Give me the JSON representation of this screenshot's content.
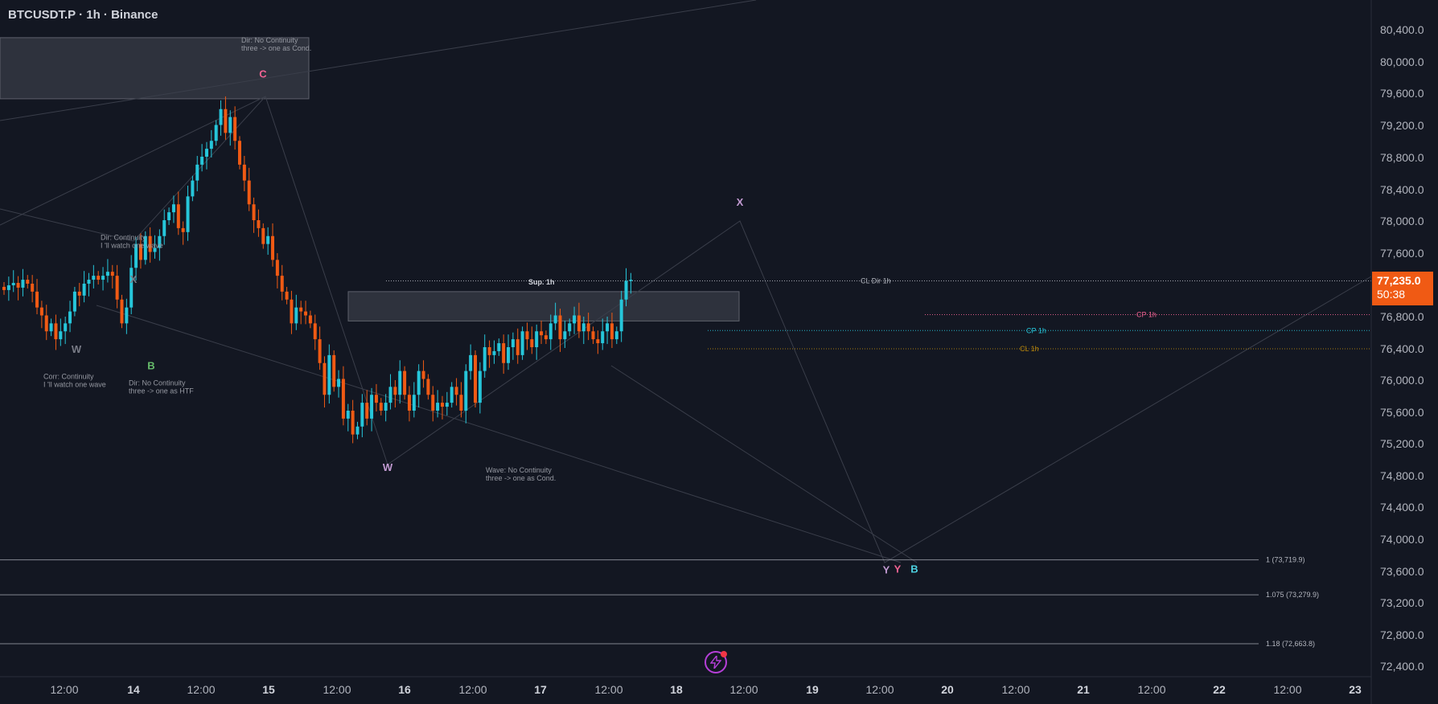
{
  "header": {
    "title": "BTCUSDT.P · 1h · Binance"
  },
  "price_tag": {
    "price": "77,235.0",
    "countdown": "50:38"
  },
  "colors": {
    "bg": "#131722",
    "bull": "#26c6da",
    "bear": "#f05a14",
    "grid": "#2a2e39",
    "text": "#b2b5be",
    "pink": "#f06292",
    "gold": "#b8860b",
    "purple": "#c39bd3",
    "green": "#66bb6a"
  },
  "chart_data": {
    "type": "candlestick",
    "ylim": [
      72200,
      80800
    ],
    "y_ticks": [
      "80,400.0",
      "80,000.0",
      "79,600.0",
      "79,200.0",
      "78,800.0",
      "78,400.0",
      "78,000.0",
      "77,600.0",
      "76,800.0",
      "76,400.0",
      "76,000.0",
      "75,600.0",
      "75,200.0",
      "74,800.0",
      "74,400.0",
      "74,000.0",
      "73,600.0",
      "73,200.0",
      "72,800.0",
      "72,400.0"
    ],
    "x_ticks": [
      {
        "label": "12:00",
        "x": 80,
        "bold": false
      },
      {
        "label": "14",
        "x": 166,
        "bold": true
      },
      {
        "label": "12:00",
        "x": 250,
        "bold": false
      },
      {
        "label": "15",
        "x": 334,
        "bold": true
      },
      {
        "label": "12:00",
        "x": 419,
        "bold": false
      },
      {
        "label": "16",
        "x": 503,
        "bold": true
      },
      {
        "label": "12:00",
        "x": 588,
        "bold": false
      },
      {
        "label": "17",
        "x": 672,
        "bold": true
      },
      {
        "label": "12:00",
        "x": 757,
        "bold": false
      },
      {
        "label": "18",
        "x": 841,
        "bold": true
      },
      {
        "label": "12:00",
        "x": 925,
        "bold": false
      },
      {
        "label": "19",
        "x": 1010,
        "bold": true
      },
      {
        "label": "12:00",
        "x": 1094,
        "bold": false
      },
      {
        "label": "20",
        "x": 1178,
        "bold": true
      },
      {
        "label": "12:00",
        "x": 1263,
        "bold": false
      },
      {
        "label": "21",
        "x": 1347,
        "bold": true
      },
      {
        "label": "12:00",
        "x": 1432,
        "bold": false
      },
      {
        "label": "22",
        "x": 1516,
        "bold": true
      },
      {
        "label": "12:00",
        "x": 1601,
        "bold": false
      },
      {
        "label": "23",
        "x": 1685,
        "bold": true
      }
    ],
    "closes": [
      77120,
      77180,
      77210,
      77150,
      77250,
      77200,
      77100,
      76900,
      76800,
      76600,
      76700,
      76500,
      76600,
      76700,
      76850,
      77100,
      77050,
      77200,
      77250,
      77300,
      77250,
      77300,
      77350,
      77300,
      77000,
      76700,
      76900,
      77400,
      77700,
      77500,
      77800,
      77600,
      77650,
      77800,
      78000,
      78100,
      78200,
      77900,
      77850,
      78300,
      78500,
      78700,
      78800,
      78900,
      79000,
      79200,
      79400,
      79100,
      79300,
      79000,
      78700,
      78500,
      78200,
      78000,
      77900,
      77700,
      77800,
      77500,
      77300,
      77100,
      77000,
      76700,
      76900,
      76850,
      76800,
      76700,
      76500,
      76200,
      75800,
      76300,
      75900,
      76000,
      75500,
      75600,
      75300,
      75400,
      75700,
      75500,
      75800,
      75700,
      75600,
      75700,
      75900,
      75800,
      76100,
      75800,
      75600,
      75800,
      76100,
      76000,
      75800,
      75600,
      75700,
      75650,
      75700,
      75900,
      75800,
      75600,
      76100,
      76300,
      75700,
      76100,
      76400,
      76300,
      76350,
      76450,
      76200,
      76400,
      76500,
      76300,
      76600,
      76500,
      76400,
      76600,
      76550,
      76500,
      76700,
      76800,
      76500,
      76600,
      76700,
      76800,
      76600,
      76700,
      76600,
      76500,
      76450,
      76600,
      76700,
      76500,
      76600,
      77000,
      77235,
      77250
    ],
    "levels": [
      {
        "price": 77235,
        "label": "CL Dir 1h",
        "style": "dotted",
        "color": "#b2b5be",
        "x0": 480
      },
      {
        "price": 76810,
        "label": "CP 1h",
        "style": "dotted",
        "color": "#f06292",
        "x0": 1150
      },
      {
        "price": 76610,
        "label": "CP 1h",
        "style": "dotted",
        "color": "#26c6da",
        "x0": 880
      },
      {
        "price": 76380,
        "label": "CL 1h",
        "style": "dotted",
        "color": "#b8860b",
        "x0": 880
      },
      {
        "price": 73719.9,
        "label": "1 (73,719.9)",
        "style": "solid",
        "color": "#b2b5be",
        "x0": 0
      },
      {
        "price": 73279.9,
        "label": "1.075 (73,279.9)",
        "style": "solid",
        "color": "#b2b5be",
        "x0": 0
      },
      {
        "price": 72663.8,
        "label": "1.18 (72,663.8)",
        "style": "solid",
        "color": "#b2b5be",
        "x0": 0
      }
    ],
    "markers": [
      {
        "text": "C",
        "price": 79800,
        "x": 327,
        "color": "#f06292"
      },
      {
        "text": "X",
        "price": 78180,
        "x": 920,
        "color": "#c39bd3"
      },
      {
        "text": "X",
        "price": 77210,
        "x": 166,
        "color": "#787b86"
      },
      {
        "text": "W",
        "price": 76330,
        "x": 95,
        "color": "#787b86"
      },
      {
        "text": "B",
        "price": 76120,
        "x": 188,
        "color": "#66bb6a"
      },
      {
        "text": "W",
        "price": 74840,
        "x": 482,
        "color": "#c39bd3"
      },
      {
        "text": "Y",
        "price": 73550,
        "x": 1102,
        "color": "#c39bd3"
      },
      {
        "text": "Y",
        "price": 73560,
        "x": 1116,
        "color": "#f06292"
      },
      {
        "text": "B",
        "price": 73560,
        "x": 1137,
        "color": "#4dd0e1"
      }
    ],
    "annotations": [
      {
        "lines": [
          "Dir:  No Continuity",
          "three -> one as Cond."
        ],
        "x": 300,
        "price": 80240
      },
      {
        "lines": [
          "Dir: Continuity",
          "I 'll watch one wave"
        ],
        "x": 125,
        "price": 77750
      },
      {
        "lines": [
          "Corr: Continuity",
          "I 'll watch one wave"
        ],
        "x": 54,
        "price": 76000
      },
      {
        "lines": [
          "Dir:  No Continuity",
          "three -> one as HTF"
        ],
        "x": 160,
        "price": 75920
      },
      {
        "lines": [
          "Wave:  No Continuity",
          "three -> one as Cond."
        ],
        "x": 604,
        "price": 74820
      },
      {
        "lines": [
          "Sup. 1h"
        ],
        "x": 657,
        "price": 77190
      }
    ]
  }
}
